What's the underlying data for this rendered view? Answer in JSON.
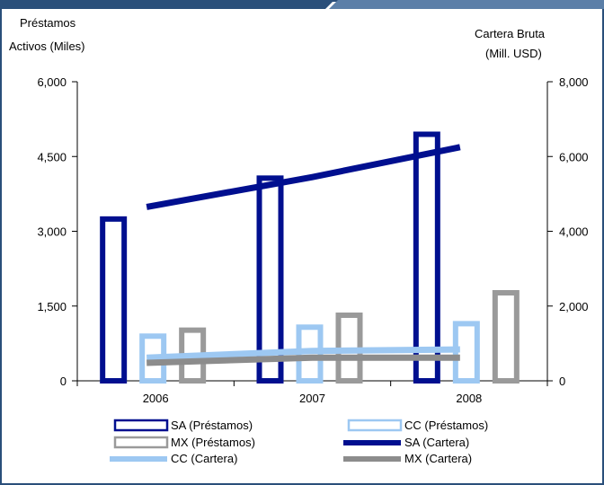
{
  "chart_data": {
    "type": "bar",
    "left_axis_title": [
      "Préstamos",
      "Activos (Miles)"
    ],
    "right_axis_title": [
      "Cartera Bruta",
      "(Mill. USD)"
    ],
    "categories": [
      "2006",
      "2007",
      "2008"
    ],
    "left_ylim": [
      0,
      6000
    ],
    "left_ticks": [
      "0",
      "1,500",
      "3,000",
      "4,500",
      "6,000"
    ],
    "left_tick_values": [
      0,
      1500,
      3000,
      4500,
      6000
    ],
    "right_ylim": [
      0,
      8000
    ],
    "right_ticks": [
      "0",
      "2,000",
      "4,000",
      "6,000",
      "8,000"
    ],
    "right_tick_values": [
      0,
      2000,
      4000,
      6000,
      8000
    ],
    "bar_series": [
      {
        "name": "SA (Préstamos)",
        "values": [
          3300,
          4120,
          5000
        ],
        "color": "#000f8f"
      },
      {
        "name": "CC (Préstamos)",
        "values": [
          950,
          1130,
          1200
        ],
        "color": "#9dc8f2"
      },
      {
        "name": "MX (Préstamos)",
        "values": [
          1070,
          1370,
          1820
        ],
        "color": "#9a9a9a"
      }
    ],
    "line_series": [
      {
        "name": "SA (Cartera)",
        "values": [
          4650,
          5450,
          6250
        ],
        "color": "#000f8f"
      },
      {
        "name": "CC (Cartera)",
        "values": [
          620,
          800,
          840
        ],
        "color": "#9dc8f2"
      },
      {
        "name": "MX (Cartera)",
        "values": [
          480,
          620,
          620
        ],
        "color": "#8c8c8c"
      }
    ],
    "legend": [
      {
        "label": "SA (Préstamos)",
        "kind": "bar",
        "color": "#000f8f"
      },
      {
        "label": "CC (Préstamos)",
        "kind": "bar",
        "color": "#9dc8f2"
      },
      {
        "label": "MX (Préstamos)",
        "kind": "bar",
        "color": "#9a9a9a"
      },
      {
        "label": "SA (Cartera)",
        "kind": "line",
        "color": "#000f8f"
      },
      {
        "label": "CC (Cartera)",
        "kind": "line",
        "color": "#9dc8f2"
      },
      {
        "label": "MX (Cartera)",
        "kind": "line",
        "color": "#8c8c8c"
      }
    ],
    "frame_color": "#2a4f7a",
    "grid": false
  }
}
